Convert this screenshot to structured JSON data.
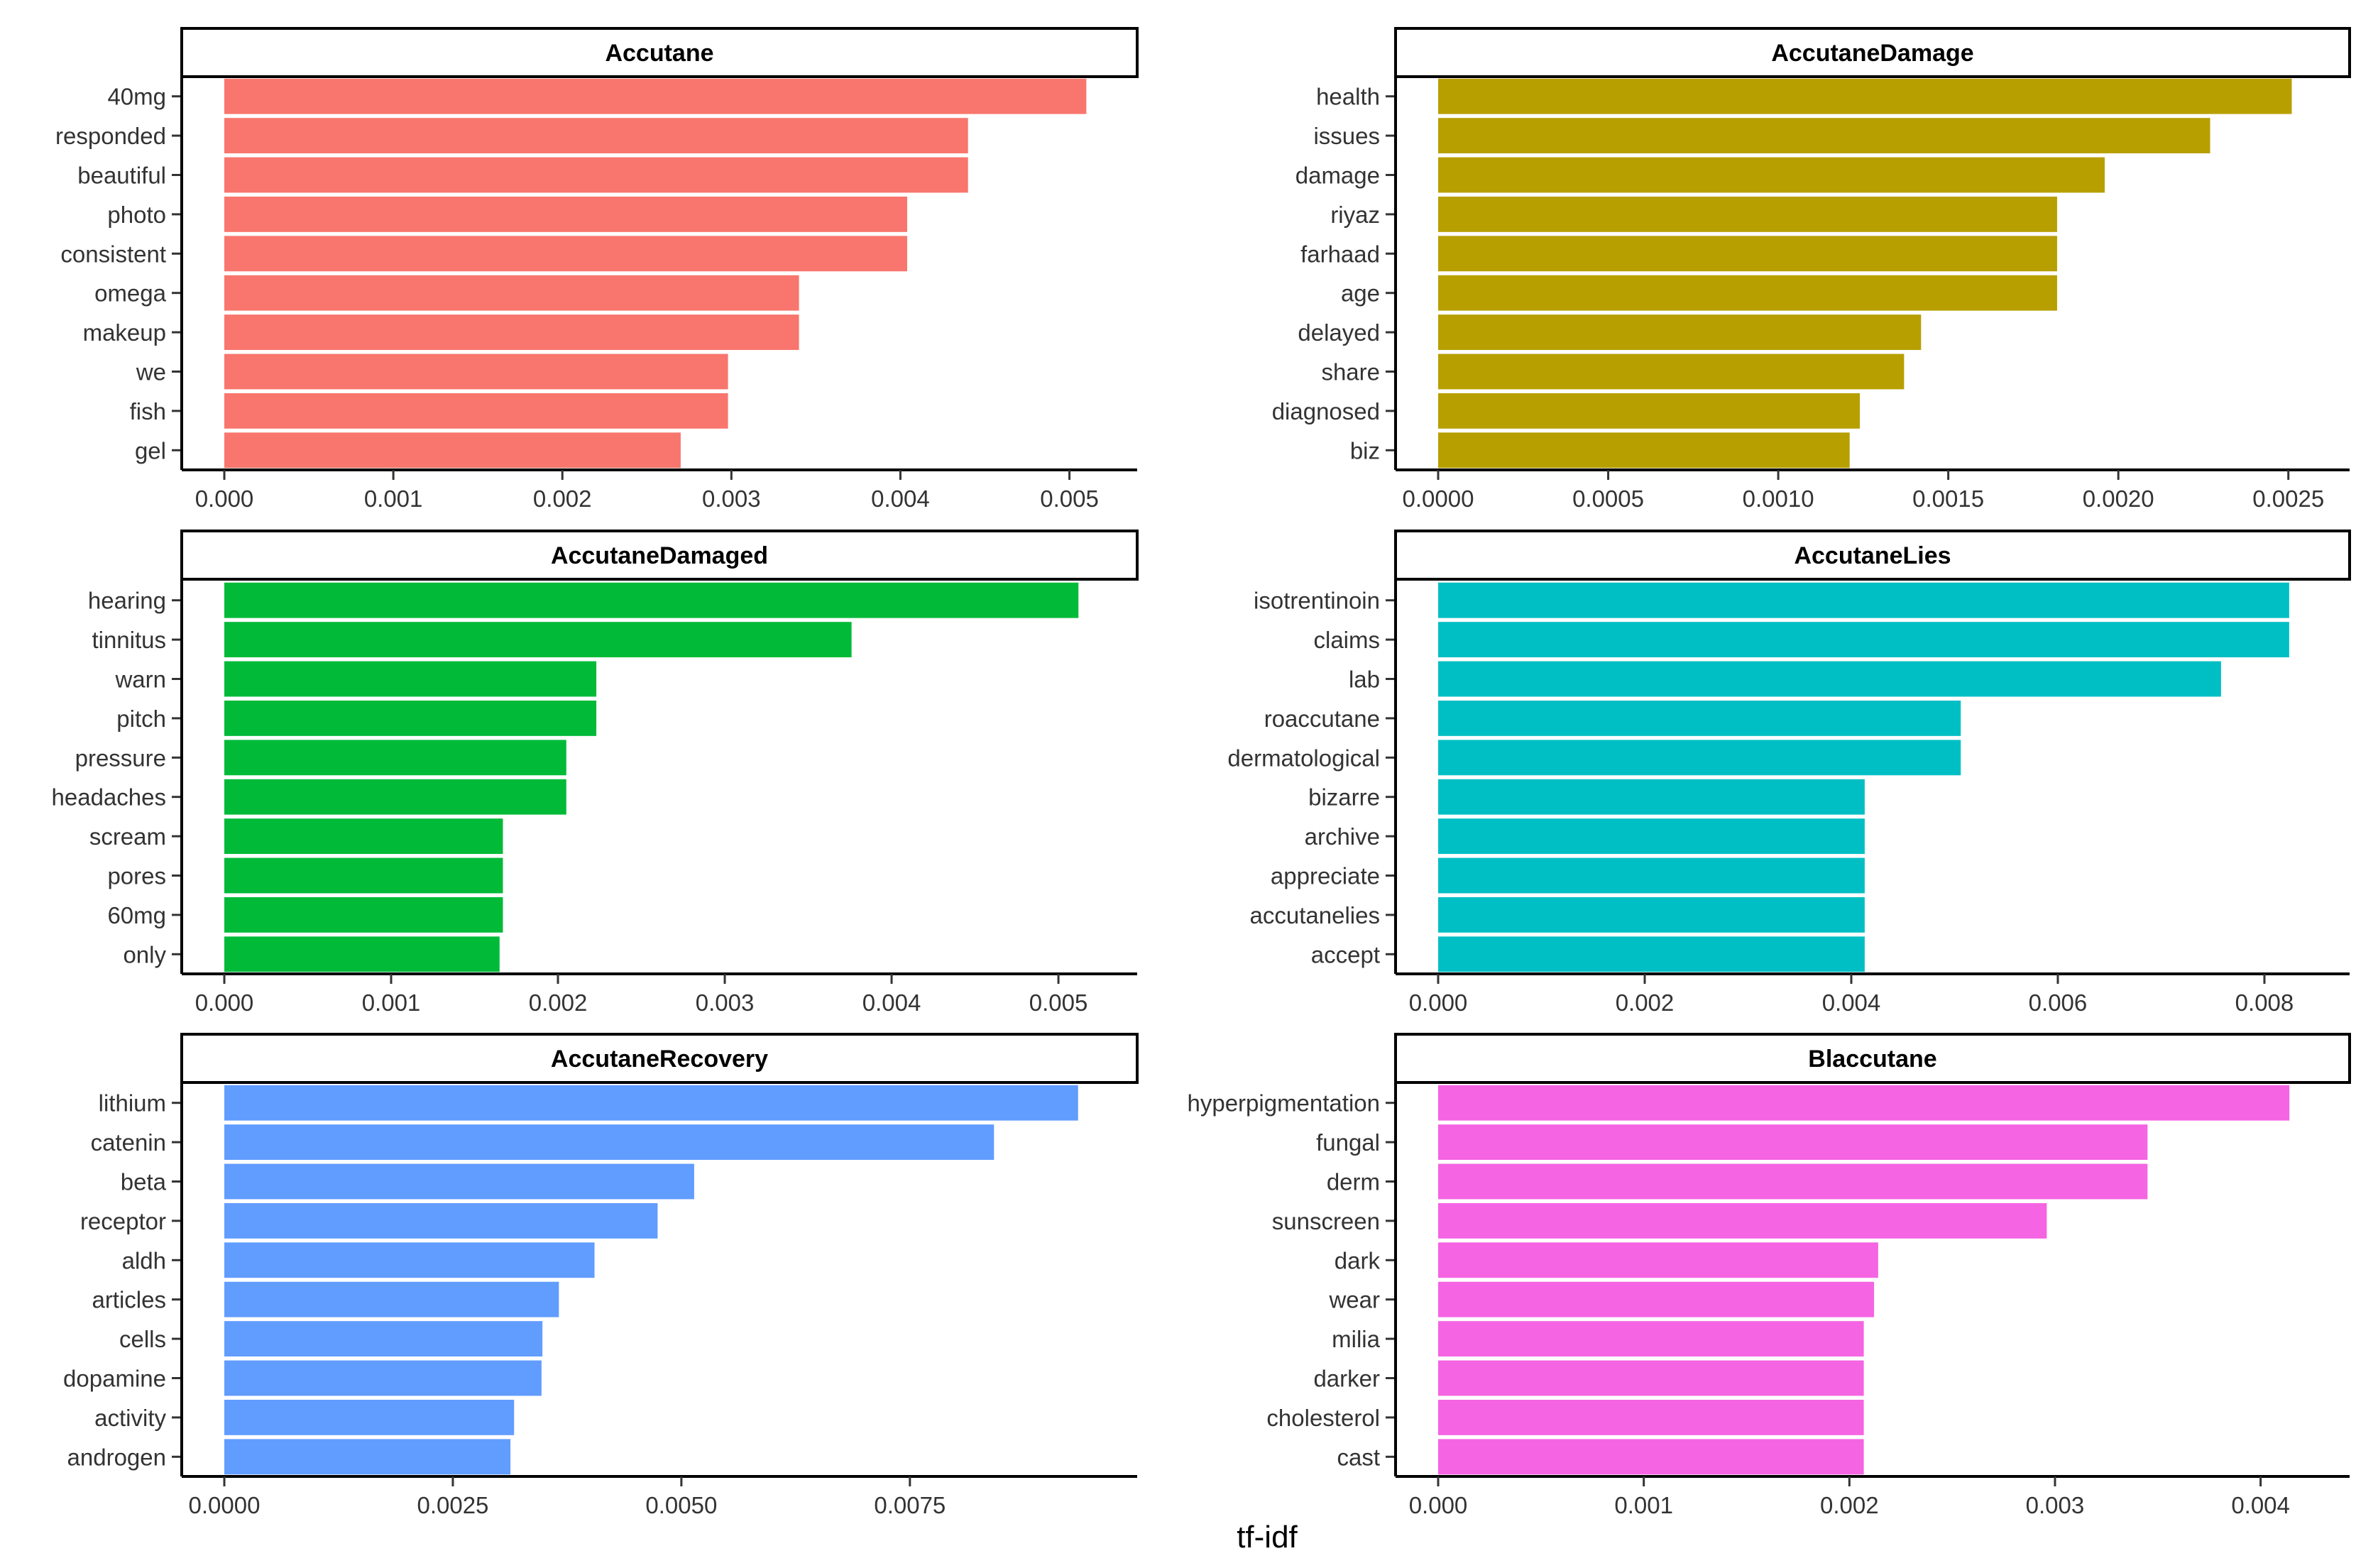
{
  "chart_data": {
    "type": "bar",
    "orientation": "horizontal",
    "xlabel": "tf-idf",
    "ylabel": "",
    "grid": false,
    "legend": "none",
    "panels": [
      {
        "title": "Accutane",
        "color": "#F8766D",
        "categories": [
          "40mg",
          "responded",
          "beautiful",
          "photo",
          "consistent",
          "omega",
          "makeup",
          "we",
          "fish",
          "gel"
        ],
        "values": [
          0.0051,
          0.0044,
          0.0044,
          0.00404,
          0.00404,
          0.0034,
          0.0034,
          0.00298,
          0.00298,
          0.0027
        ],
        "xlim": [
          0,
          0.0053
        ],
        "ticks": [
          0,
          0.001,
          0.002,
          0.003,
          0.004,
          0.005
        ],
        "tick_labels": [
          "0.000",
          "0.001",
          "0.002",
          "0.003",
          "0.004",
          "0.005"
        ]
      },
      {
        "title": "AccutaneDamage",
        "color": "#B79F00",
        "categories": [
          "health",
          "issues",
          "damage",
          "riyaz",
          "farhaad",
          "age",
          "delayed",
          "share",
          "diagnosed",
          "biz"
        ],
        "values": [
          0.00251,
          0.00227,
          0.00196,
          0.00182,
          0.00182,
          0.00182,
          0.00142,
          0.00137,
          0.00124,
          0.00121
        ],
        "xlim": [
          0,
          0.00263
        ],
        "ticks": [
          0,
          0.0005,
          0.001,
          0.0015,
          0.002,
          0.0025
        ],
        "tick_labels": [
          "0.0000",
          "0.0005",
          "0.0010",
          "0.0015",
          "0.0020",
          "0.0025"
        ]
      },
      {
        "title": "AccutaneDamaged",
        "color": "#00BA38",
        "categories": [
          "hearing",
          "tinnitus",
          "warn",
          "pitch",
          "pressure",
          "headaches",
          "scream",
          "pores",
          "60mg",
          "only"
        ],
        "values": [
          0.00512,
          0.00376,
          0.00223,
          0.00223,
          0.00205,
          0.00205,
          0.00167,
          0.00167,
          0.00167,
          0.00165
        ],
        "xlim": [
          0,
          0.00537
        ],
        "ticks": [
          0,
          0.001,
          0.002,
          0.003,
          0.004,
          0.005
        ],
        "tick_labels": [
          "0.000",
          "0.001",
          "0.002",
          "0.003",
          "0.004",
          "0.005"
        ]
      },
      {
        "title": "AccutaneLies",
        "color": "#00BFC4",
        "categories": [
          "isotrentinoin",
          "claims",
          "lab",
          "roaccutane",
          "dermatological",
          "bizarre",
          "archive",
          "appreciate",
          "accutanelies",
          "accept"
        ],
        "values": [
          0.00824,
          0.00824,
          0.00758,
          0.00506,
          0.00506,
          0.00413,
          0.00413,
          0.00413,
          0.00413,
          0.00413
        ],
        "xlim": [
          0,
          0.00866
        ],
        "ticks": [
          0,
          0.002,
          0.004,
          0.006,
          0.008
        ],
        "tick_labels": [
          "0.000",
          "0.002",
          "0.004",
          "0.006",
          "0.008"
        ]
      },
      {
        "title": "AccutaneRecovery",
        "color": "#619CFF",
        "categories": [
          "lithium",
          "catenin",
          "beta",
          "receptor",
          "aldh",
          "articles",
          "cells",
          "dopamine",
          "activity",
          "androgen"
        ],
        "values": [
          0.00934,
          0.00842,
          0.00514,
          0.00474,
          0.00405,
          0.00366,
          0.00348,
          0.00347,
          0.00317,
          0.00313
        ],
        "xlim": [
          0,
          0.0098
        ],
        "ticks": [
          0,
          0.0025,
          0.005,
          0.0075
        ],
        "tick_labels": [
          "0.0000",
          "0.0025",
          "0.0050",
          "0.0075"
        ]
      },
      {
        "title": "Blaccutane",
        "color": "#F564E3",
        "categories": [
          "hyperpigmentation",
          "fungal",
          "derm",
          "sunscreen",
          "dark",
          "wear",
          "milia",
          "darker",
          "cholesterol",
          "cast"
        ],
        "values": [
          0.00414,
          0.00345,
          0.00345,
          0.00296,
          0.00214,
          0.00212,
          0.00207,
          0.00207,
          0.00207,
          0.00207
        ],
        "xlim": [
          0,
          0.00435
        ],
        "ticks": [
          0,
          0.001,
          0.002,
          0.003,
          0.004
        ],
        "tick_labels": [
          "0.000",
          "0.001",
          "0.002",
          "0.003",
          "0.004"
        ]
      }
    ]
  }
}
